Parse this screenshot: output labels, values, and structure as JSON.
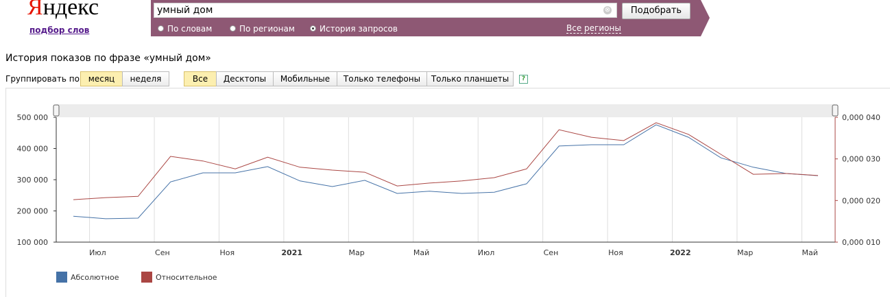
{
  "header": {
    "logo": "Яндекс",
    "logo_sub": "подбор слов"
  },
  "search": {
    "query": "умный дом",
    "clear": "⊗",
    "button": "Подобрать",
    "modes": [
      "По словам",
      "По регионам",
      "История запросов"
    ],
    "regions": "Все регионы"
  },
  "title": "История показов по фразе «умный дом»",
  "group_label": "Группировать по:",
  "group_options": [
    "месяц",
    "неделя"
  ],
  "device_options": [
    "Все",
    "Десктопы",
    "Мобильные",
    "Только телефоны",
    "Только планшеты"
  ],
  "help": "?",
  "chart_data": {
    "type": "line",
    "categories": [
      null,
      "Июл",
      null,
      "Сен",
      null,
      "Ноя",
      null,
      "2021",
      null,
      "Мар",
      null,
      "Май",
      null,
      "Июл",
      null,
      "Сен",
      null,
      "Ноя",
      null,
      "2022",
      null,
      "Мар",
      null,
      "Май"
    ],
    "series": [
      {
        "name": "Абсолютное",
        "color": "#4572a7",
        "values": [
          183000,
          175000,
          177000,
          293000,
          322000,
          322000,
          342000,
          296000,
          278000,
          298000,
          256000,
          263000,
          256000,
          260000,
          287000,
          408000,
          412000,
          412000,
          476000,
          436000,
          370000,
          340000,
          320000,
          313000
        ]
      },
      {
        "name": "Относительное",
        "color": "#aa4643",
        "axis": "y2",
        "values": [
          2.02e-05,
          2.07e-05,
          2.1e-05,
          3.06e-05,
          2.95e-05,
          2.76e-05,
          3.04e-05,
          2.8e-05,
          2.73e-05,
          2.68e-05,
          2.35e-05,
          2.42e-05,
          2.47e-05,
          2.55e-05,
          2.76e-05,
          3.7e-05,
          3.52e-05,
          3.44e-05,
          3.87e-05,
          3.59e-05,
          3.11e-05,
          2.63e-05,
          2.65e-05,
          2.6e-05
        ]
      }
    ],
    "ylim": [
      100000,
      500000
    ],
    "yticks": [
      {
        "value": 100000,
        "label": "100 000"
      },
      {
        "value": 200000,
        "label": "200 000"
      },
      {
        "value": 300000,
        "label": "300 000"
      },
      {
        "value": 400000,
        "label": "400 000"
      },
      {
        "value": 500000,
        "label": "500 000"
      }
    ],
    "y2lim": [
      1e-05,
      4e-05
    ],
    "y2ticks": [
      {
        "value": 1e-05,
        "label": "0,000 010"
      },
      {
        "value": 2e-05,
        "label": "0,000 020"
      },
      {
        "value": 3e-05,
        "label": "0,000 030"
      },
      {
        "value": 4e-05,
        "label": "0,000 040"
      }
    ],
    "grid": true
  }
}
